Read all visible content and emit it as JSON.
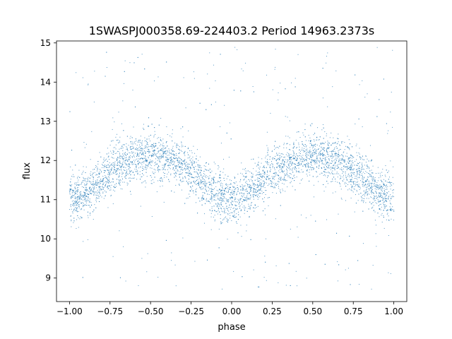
{
  "chart_data": {
    "type": "scatter",
    "title": "1SWASPJ000358.69-224403.2 Period 14963.2373s",
    "xlabel": "phase",
    "ylabel": "flux",
    "xlim": [
      -1.08,
      1.08
    ],
    "ylim": [
      8.4,
      15.05
    ],
    "x_ticks": [
      -1.0,
      -0.75,
      -0.5,
      -0.25,
      0.0,
      0.25,
      0.5,
      0.75,
      1.0
    ],
    "x_tick_labels": [
      "−1.00",
      "−0.75",
      "−0.50",
      "−0.25",
      "0.00",
      "0.25",
      "0.50",
      "0.75",
      "1.00"
    ],
    "y_ticks": [
      9,
      10,
      11,
      12,
      13,
      14,
      15
    ],
    "y_tick_labels": [
      "9",
      "10",
      "11",
      "12",
      "13",
      "14",
      "15"
    ],
    "grid": false,
    "series": [
      {
        "marker_color": "#1f77b4",
        "description_model": {
          "x_range": [
            -1.0,
            1.0
          ],
          "shape": "sinusoid, two cycles over phase -1..1",
          "mean_flux": 11.55,
          "amplitude": 0.55,
          "maxima_at_phase": [
            -0.55,
            0.45
          ],
          "minima_at_phase": [
            -1.0,
            0.0,
            1.0
          ],
          "core_scatter": 0.3,
          "outlier_range": [
            8.7,
            14.9
          ]
        },
        "approx_points": [
          {
            "x": -1.0,
            "y": 11.0
          },
          {
            "x": -0.75,
            "y": 11.7
          },
          {
            "x": -0.55,
            "y": 12.1
          },
          {
            "x": -0.25,
            "y": 11.6
          },
          {
            "x": 0.0,
            "y": 11.0
          },
          {
            "x": 0.25,
            "y": 11.7
          },
          {
            "x": 0.45,
            "y": 12.1
          },
          {
            "x": 0.75,
            "y": 11.6
          },
          {
            "x": 1.0,
            "y": 11.0
          }
        ]
      }
    ]
  }
}
